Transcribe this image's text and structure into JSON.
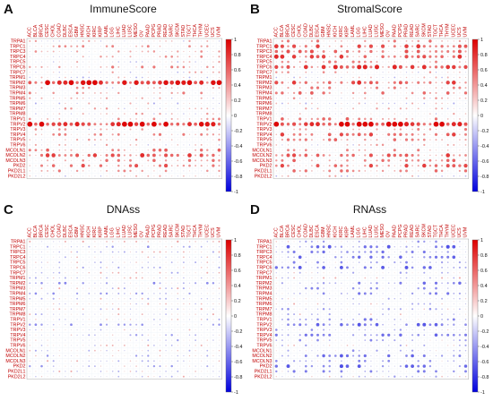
{
  "panels": [
    {
      "letter": "A",
      "title": "ImmuneScore"
    },
    {
      "letter": "B",
      "title": "StromalScore"
    },
    {
      "letter": "C",
      "title": "DNAss"
    },
    {
      "letter": "D",
      "title": "RNAss"
    }
  ],
  "chart_data": {
    "type": "heatmap",
    "rows": [
      "TRPA1",
      "TRPC1",
      "TRPC3",
      "TRPC4",
      "TRPC5",
      "TRPC6",
      "TRPC7",
      "TRPM1",
      "TRPM2",
      "TRPM3",
      "TRPM4",
      "TRPM5",
      "TRPM6",
      "TRPM7",
      "TRPM8",
      "TRPV1",
      "TRPV2",
      "TRPV3",
      "TRPV4",
      "TRPV5",
      "TRPV6",
      "MCOLN1",
      "MCOLN2",
      "MCOLN3",
      "PKD2",
      "PKD2L1",
      "PKD2L2"
    ],
    "columns": [
      "ACC",
      "BLCA",
      "BRCA",
      "CESC",
      "CHOL",
      "COAD",
      "DLBC",
      "ESCA",
      "GBM",
      "HNSC",
      "KICH",
      "KIRC",
      "KIRP",
      "LAML",
      "LGG",
      "LIHC",
      "LUAD",
      "LUSC",
      "MESO",
      "OV",
      "PAAD",
      "PCPG",
      "PRAD",
      "READ",
      "SARC",
      "SKCM",
      "STAD",
      "TGCT",
      "THCA",
      "THYM",
      "UCEC",
      "UCS",
      "UVM"
    ],
    "colorbar_ticks": [
      1,
      0.8,
      0.6,
      0.4,
      0.2,
      0,
      -0.2,
      -0.4,
      -0.6,
      -0.8,
      -1
    ],
    "color_scale": {
      "low": "#0000dd",
      "mid": "#ffffff",
      "high": "#dd0000"
    },
    "series": [
      {
        "name": "ImmuneScore",
        "row_mean": [
          0.1,
          0.2,
          0.15,
          0.15,
          0.05,
          0.2,
          0.05,
          0,
          0.7,
          0.1,
          0.2,
          0.1,
          0,
          0.1,
          0.1,
          0.15,
          0.8,
          0.1,
          0.2,
          0.1,
          0.1,
          0.3,
          0.5,
          0.3,
          0.4,
          0.2,
          0.05
        ]
      },
      {
        "name": "StromalScore",
        "row_mean": [
          0.25,
          0.5,
          0.4,
          0.5,
          0.2,
          0.55,
          0.1,
          0,
          0.5,
          0.2,
          0.3,
          0.1,
          0,
          0.1,
          0.1,
          0.3,
          0.85,
          0.2,
          0.45,
          0.3,
          0.1,
          0.2,
          0.45,
          0.3,
          0.45,
          0.3,
          0.05
        ]
      },
      {
        "name": "DNAss",
        "row_mean": [
          0.05,
          -0.1,
          0,
          0,
          0,
          -0.05,
          0,
          0,
          -0.2,
          0,
          -0.1,
          0,
          0,
          0,
          0,
          -0.05,
          -0.25,
          0,
          -0.1,
          -0.05,
          0,
          0,
          -0.1,
          0,
          -0.1,
          0,
          0
        ]
      },
      {
        "name": "RNAss",
        "row_mean": [
          -0.1,
          -0.35,
          -0.25,
          -0.3,
          -0.2,
          -0.35,
          -0.1,
          0,
          -0.25,
          -0.15,
          -0.2,
          -0.1,
          0,
          -0.1,
          -0.05,
          -0.2,
          -0.35,
          -0.1,
          -0.3,
          -0.15,
          -0.05,
          -0.1,
          -0.3,
          -0.15,
          -0.35,
          -0.2,
          -0.05
        ]
      }
    ]
  }
}
